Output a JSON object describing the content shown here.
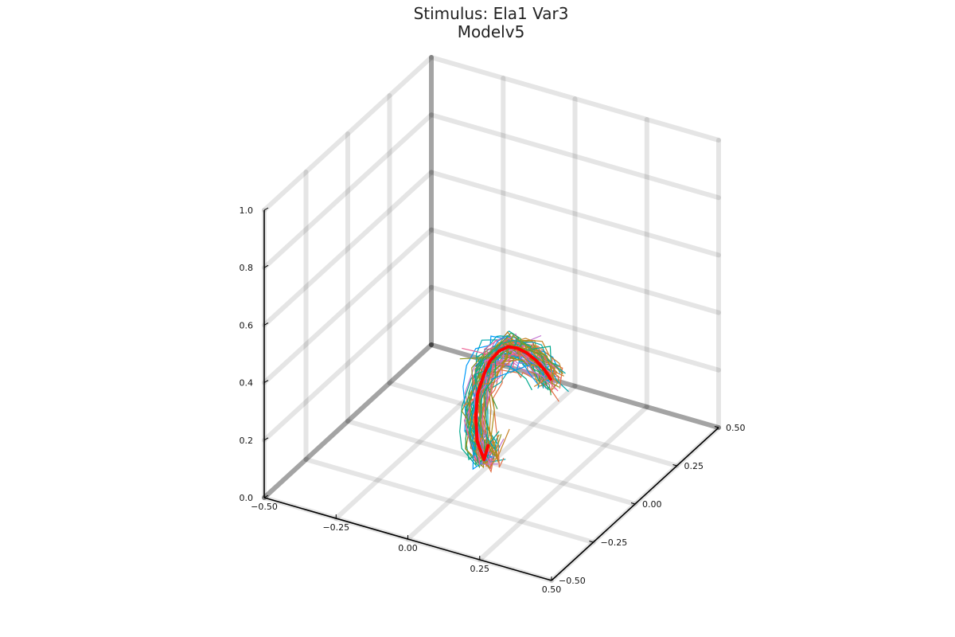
{
  "chart_data": {
    "type": "line",
    "projection": "3d",
    "title": "Stimulus: Ela1 Var3",
    "subtitle": "Modelv5",
    "xlabel": "",
    "ylabel": "",
    "zlabel": "",
    "xlim": [
      -0.5,
      0.5
    ],
    "ylim": [
      -0.5,
      0.5
    ],
    "zlim": [
      0.0,
      1.0
    ],
    "x_ticks": [
      "−0.50",
      "−0.25",
      "0.00",
      "0.25",
      "0.50"
    ],
    "y_ticks": [
      "−0.50",
      "−0.25",
      "0.00",
      "0.25",
      "0.50"
    ],
    "z_ticks": [
      "0.0",
      "0.2",
      "0.4",
      "0.6",
      "0.8",
      "1.0"
    ],
    "grid": true,
    "legend": "none",
    "series_colors": [
      "#009af9",
      "#e26f46",
      "#3da44d",
      "#c271d2",
      "#ac8e18",
      "#00a9ad",
      "#ed5e93",
      "#c68225",
      "#00a98d",
      "#8e971d"
    ],
    "highlight_color": "#ff0000",
    "mean_path": [
      [
        0.0,
        -0.02,
        0.07
      ],
      [
        -0.02,
        -0.01,
        0.01
      ],
      [
        -0.05,
        0.0,
        0.06
      ],
      [
        -0.06,
        0.01,
        0.14
      ],
      [
        -0.06,
        0.02,
        0.21
      ],
      [
        -0.05,
        0.04,
        0.27
      ],
      [
        -0.04,
        0.06,
        0.31
      ],
      [
        -0.02,
        0.08,
        0.34
      ],
      [
        0.0,
        0.1,
        0.35
      ],
      [
        0.02,
        0.12,
        0.34
      ],
      [
        0.04,
        0.14,
        0.32
      ],
      [
        0.06,
        0.16,
        0.29
      ],
      [
        0.08,
        0.18,
        0.25
      ],
      [
        0.09,
        0.2,
        0.21
      ]
    ]
  }
}
